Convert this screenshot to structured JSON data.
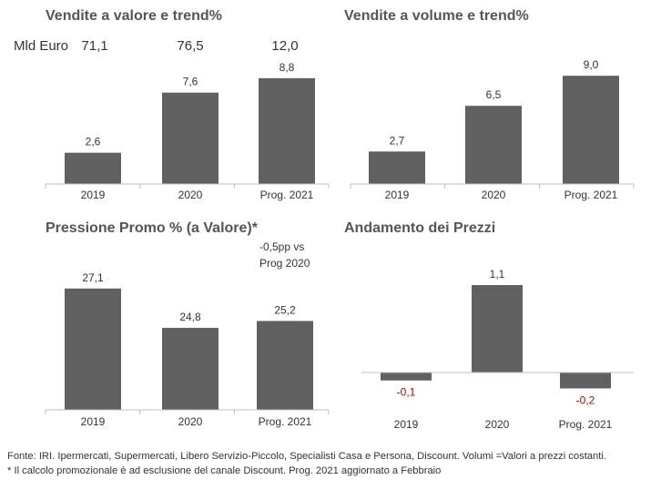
{
  "chart_data": [
    {
      "type": "bar",
      "title": "Vendite a valore e trend%",
      "categories": [
        "2019",
        "2020",
        "Prog. 2021"
      ],
      "values": [
        2.6,
        7.6,
        8.8
      ],
      "value_labels": [
        "2,6",
        "7,6",
        "8,8"
      ],
      "ylim": [
        0,
        10
      ],
      "grid": false,
      "bar_color": "#606060",
      "extra_row": {
        "label": "Mld Euro",
        "values": [
          "71,1",
          "76,5",
          "12,0"
        ]
      }
    },
    {
      "type": "bar",
      "title": "Vendite a volume e trend%",
      "categories": [
        "2019",
        "2020",
        "Prog. 2021"
      ],
      "values": [
        2.7,
        6.5,
        9.0
      ],
      "value_labels": [
        "2,7",
        "6,5",
        "9,0"
      ],
      "ylim": [
        0,
        10
      ],
      "grid": false,
      "bar_color": "#606060"
    },
    {
      "type": "bar",
      "title": "Pressione Promo % (a Valore)*",
      "categories": [
        "2019",
        "2020",
        "Prog. 2021"
      ],
      "values": [
        27.1,
        24.8,
        25.2
      ],
      "value_labels": [
        "27,1",
        "24,8",
        "25,2"
      ],
      "ylim": [
        20,
        28.1
      ],
      "grid": false,
      "bar_color": "#606060",
      "annotation": [
        "-0,5pp vs",
        "Prog 2020"
      ]
    },
    {
      "type": "bar",
      "title": "Andamento dei Prezzi",
      "categories": [
        "2019",
        "2020",
        "Prog. 2021"
      ],
      "values": [
        -0.1,
        1.1,
        -0.2
      ],
      "value_labels": [
        "-0,1",
        "1,1",
        "-0,2"
      ],
      "ylim": [
        -0.5,
        1.5
      ],
      "grid": false,
      "bar_color": "#606060",
      "negative_label_color": "#c00000"
    }
  ],
  "footer": {
    "line1": "Fonte: IRI. Ipermercati, Supermercati, Libero Servizio-Piccolo, Specialisti Casa e Persona, Discount.  Volumi =Valori a prezzi  costanti.",
    "line2": "* Il calcolo promozionale è ad esclusione del canale Discount. Prog. 2021 aggiornato a Febbraio"
  }
}
